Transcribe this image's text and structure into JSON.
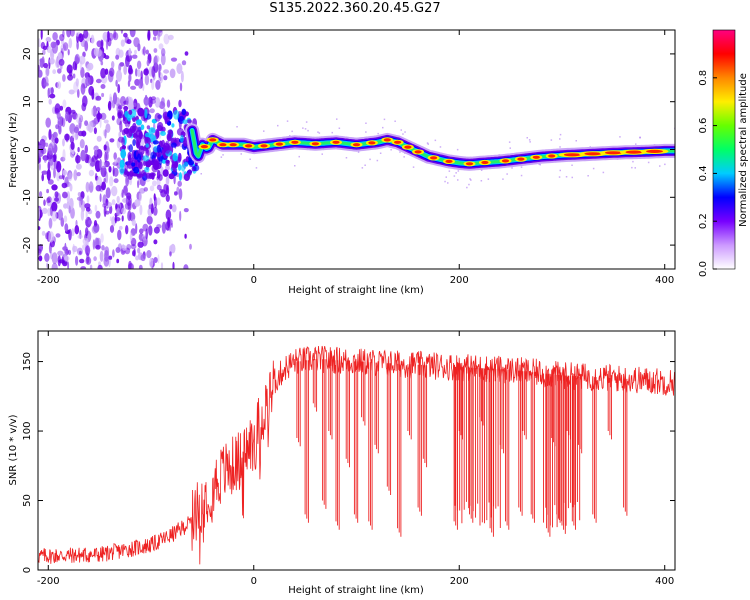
{
  "title": "S135.2022.360.20.45.G27",
  "colors": {
    "snr_line": "#ee2222",
    "scatter": "#6a00e8",
    "axis": "#000000"
  },
  "chart_data": [
    {
      "type": "heatmap",
      "xlabel": "Height of straight line (km)",
      "ylabel": "Frequency (Hz)",
      "xlim": [
        -210,
        410
      ],
      "ylim": [
        -25,
        25
      ],
      "xticks": [
        -200,
        0,
        200,
        400
      ],
      "yticks": [
        -20,
        -10,
        0,
        10,
        20
      ],
      "colorbar": {
        "label": "Normalized spectral amplitude",
        "range": [
          0,
          1
        ],
        "ticks": [
          "0.0",
          "0.2",
          "0.4",
          "0.6",
          "0.8"
        ],
        "colors": [
          "#ffffff",
          "#cc99ff",
          "#7700ff",
          "#0000ff",
          "#00ccff",
          "#00ff66",
          "#66ff00",
          "#ffee00",
          "#ff8800",
          "#ff0000",
          "#ff0080"
        ]
      },
      "ridge": {
        "x": [
          -60,
          -55,
          -50,
          -45,
          -40,
          -30,
          -20,
          -10,
          0,
          20,
          40,
          60,
          80,
          100,
          120,
          130,
          140,
          150,
          160,
          170,
          180,
          190,
          200,
          210,
          220,
          240,
          260,
          280,
          300,
          320,
          340,
          360,
          380,
          400
        ],
        "y": [
          4,
          -2,
          1,
          0,
          2,
          1,
          1,
          1,
          0.5,
          1,
          1.5,
          1.2,
          1.5,
          1,
          1.5,
          2,
          1.5,
          0.5,
          -0.5,
          -1.5,
          -2,
          -2.5,
          -2.8,
          -3,
          -2.8,
          -2.5,
          -2,
          -1.5,
          -1.2,
          -1,
          -0.8,
          -0.6,
          -0.5,
          -0.3
        ]
      }
    },
    {
      "type": "line",
      "xlabel": "Height of straight line (km)",
      "ylabel": "SNR (10 * v/v)",
      "xlim": [
        -210,
        410
      ],
      "ylim": [
        0,
        172
      ],
      "xticks": [
        -200,
        0,
        200,
        400
      ],
      "yticks": [
        0,
        50,
        100,
        150
      ],
      "envelope": {
        "x": [
          -210,
          -150,
          -100,
          -80,
          -60,
          -50,
          -40,
          -30,
          -20,
          -10,
          0,
          10,
          20,
          30,
          40,
          60,
          100,
          150,
          200,
          250,
          300,
          350,
          410
        ],
        "y": [
          10,
          11,
          18,
          25,
          35,
          50,
          60,
          70,
          75,
          82,
          95,
          115,
          135,
          145,
          150,
          152,
          150,
          148,
          146,
          144,
          140,
          138,
          135
        ]
      },
      "dropouts": {
        "x": [
          42,
          50,
          58,
          67,
          73,
          80,
          90,
          98,
          105,
          112,
          118,
          130,
          140,
          150,
          160,
          165,
          195,
          200,
          210,
          220,
          230,
          240,
          245,
          258,
          262,
          270,
          285,
          290,
          295,
          300,
          305,
          310,
          316,
          330,
          345,
          360
        ],
        "y": [
          95,
          40,
          120,
          50,
          100,
          35,
          80,
          40,
          110,
          35,
          90,
          60,
          30,
          100,
          45,
          80,
          35,
          100,
          40,
          110,
          30,
          90,
          35,
          45,
          100,
          40,
          30,
          95,
          40,
          32,
          100,
          35,
          90,
          40,
          100,
          45
        ]
      }
    }
  ]
}
